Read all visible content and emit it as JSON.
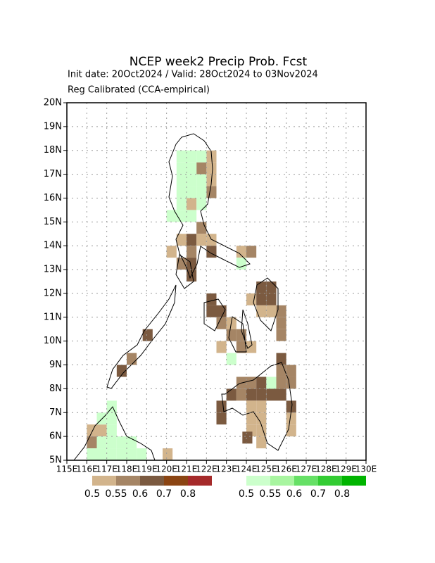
{
  "chart_data": {
    "type": "gridmap",
    "title": "NCEP week2 Precip Prob. Fcst",
    "subtitle": "Init date: 20Oct2024 / Valid: 28Oct2024 to 03Nov2024",
    "subtitle2": "Reg Calibrated (CCA-empirical)",
    "xlim": [
      115,
      130
    ],
    "ylim": [
      5,
      20
    ],
    "xticks": [
      {
        "value": 115,
        "label": "115E"
      },
      {
        "value": 116,
        "label": "116E"
      },
      {
        "value": 117,
        "label": "117E"
      },
      {
        "value": 118,
        "label": "118E"
      },
      {
        "value": 119,
        "label": "119E"
      },
      {
        "value": 120,
        "label": "120E"
      },
      {
        "value": 121,
        "label": "121E"
      },
      {
        "value": 122,
        "label": "122E"
      },
      {
        "value": 123,
        "label": "123E"
      },
      {
        "value": 124,
        "label": "124E"
      },
      {
        "value": 125,
        "label": "125E"
      },
      {
        "value": 126,
        "label": "126E"
      },
      {
        "value": 127,
        "label": "127E"
      },
      {
        "value": 128,
        "label": "128E"
      },
      {
        "value": 129,
        "label": "129E"
      },
      {
        "value": 130,
        "label": "130E"
      }
    ],
    "yticks": [
      {
        "value": 5,
        "label": "5N"
      },
      {
        "value": 6,
        "label": "6N"
      },
      {
        "value": 7,
        "label": "7N"
      },
      {
        "value": 8,
        "label": "8N"
      },
      {
        "value": 9,
        "label": "9N"
      },
      {
        "value": 10,
        "label": "10N"
      },
      {
        "value": 11,
        "label": "11N"
      },
      {
        "value": 12,
        "label": "12N"
      },
      {
        "value": 13,
        "label": "13N"
      },
      {
        "value": 14,
        "label": "14N"
      },
      {
        "value": 15,
        "label": "15N"
      },
      {
        "value": 16,
        "label": "16N"
      },
      {
        "value": 17,
        "label": "17N"
      },
      {
        "value": 18,
        "label": "18N"
      },
      {
        "value": 19,
        "label": "19N"
      },
      {
        "value": 20,
        "label": "20N"
      }
    ],
    "grid": true,
    "cell_size": 0.5,
    "levels": [
      0.5,
      0.55,
      0.6,
      0.7,
      0.8
    ],
    "below_colors": [
      "#d2b48c",
      "#a58565",
      "#7b5a40",
      "#8b4513",
      "#a52a2a"
    ],
    "above_colors": [
      "#ccffcc",
      "#a8f5a0",
      "#66e066",
      "#33cc33",
      "#00b400"
    ],
    "below_cells": [
      [
        122,
        17.5,
        0.52
      ],
      [
        121.5,
        17,
        0.57
      ],
      [
        122,
        17,
        0.52
      ],
      [
        122,
        16.5,
        0.52
      ],
      [
        122,
        16,
        0.57
      ],
      [
        121,
        15.5,
        0.52
      ],
      [
        121.5,
        14.5,
        0.57
      ],
      [
        120.5,
        14,
        0.52
      ],
      [
        121,
        14,
        0.65
      ],
      [
        121.5,
        14,
        0.52
      ],
      [
        122,
        14,
        0.52
      ],
      [
        120,
        13.5,
        0.52
      ],
      [
        121,
        13.5,
        0.57
      ],
      [
        122,
        13.5,
        0.65
      ],
      [
        120.5,
        13,
        0.57
      ],
      [
        121,
        13,
        0.65
      ],
      [
        121,
        12.5,
        0.65
      ],
      [
        123.5,
        13.5,
        0.52
      ],
      [
        124,
        13.5,
        0.57
      ],
      [
        124.5,
        12,
        0.65
      ],
      [
        125,
        12,
        0.65
      ],
      [
        124,
        11.5,
        0.52
      ],
      [
        124.5,
        11.5,
        0.65
      ],
      [
        125,
        11.5,
        0.65
      ],
      [
        124.5,
        11,
        0.52
      ],
      [
        125,
        11,
        0.52
      ],
      [
        125.5,
        11,
        0.57
      ],
      [
        125.5,
        10.5,
        0.57
      ],
      [
        125.5,
        10,
        0.57
      ],
      [
        122,
        11.5,
        0.65
      ],
      [
        122,
        11,
        0.65
      ],
      [
        122.5,
        11,
        0.65
      ],
      [
        122.5,
        10.5,
        0.57
      ],
      [
        123,
        10.5,
        0.52
      ],
      [
        123,
        10,
        0.57
      ],
      [
        123.5,
        10,
        0.57
      ],
      [
        123.5,
        9.5,
        0.57
      ],
      [
        122.5,
        9.5,
        0.52
      ],
      [
        124,
        9.5,
        0.52
      ],
      [
        118.8,
        10,
        0.65
      ],
      [
        118,
        9,
        0.57
      ],
      [
        117.5,
        8.5,
        0.65
      ],
      [
        123,
        7.5,
        0.65
      ],
      [
        123.5,
        7.5,
        0.57
      ],
      [
        124,
        7.5,
        0.65
      ],
      [
        124.5,
        7.5,
        0.65
      ],
      [
        125,
        7.5,
        0.65
      ],
      [
        125.5,
        7.5,
        0.65
      ],
      [
        123.5,
        8,
        0.57
      ],
      [
        124,
        8,
        0.57
      ],
      [
        124.5,
        8,
        0.65
      ],
      [
        125.5,
        8,
        0.57
      ],
      [
        126,
        8,
        0.57
      ],
      [
        125.5,
        8.5,
        0.57
      ],
      [
        126,
        8.5,
        0.57
      ],
      [
        125.5,
        9,
        0.65
      ],
      [
        122.5,
        7,
        0.65
      ],
      [
        122.5,
        6.5,
        0.65
      ],
      [
        124,
        7,
        0.52
      ],
      [
        124.5,
        7,
        0.52
      ],
      [
        124,
        6.5,
        0.52
      ],
      [
        124.5,
        6.5,
        0.52
      ],
      [
        124,
        6,
        0.52
      ],
      [
        124.5,
        6,
        0.52
      ],
      [
        123.8,
        5.7,
        0.65
      ],
      [
        124.5,
        5.5,
        0.52
      ],
      [
        126,
        6.5,
        0.52
      ],
      [
        126,
        6,
        0.52
      ],
      [
        126,
        7,
        0.65
      ],
      [
        116,
        6,
        0.52
      ],
      [
        116.5,
        6,
        0.52
      ],
      [
        116,
        5.5,
        0.57
      ],
      [
        119.8,
        5,
        0.52
      ]
    ],
    "above_cells": [
      [
        120.5,
        17.5,
        0.52
      ],
      [
        121,
        17.5,
        0.52
      ],
      [
        121.5,
        17.5,
        0.52
      ],
      [
        120.5,
        17,
        0.52
      ],
      [
        121,
        17,
        0.52
      ],
      [
        120.5,
        16.5,
        0.52
      ],
      [
        121,
        16.5,
        0.52
      ],
      [
        121.5,
        16.5,
        0.52
      ],
      [
        120.5,
        16,
        0.52
      ],
      [
        121,
        16,
        0.52
      ],
      [
        121.5,
        16,
        0.52
      ],
      [
        120.5,
        15.5,
        0.52
      ],
      [
        121.5,
        15.5,
        0.52
      ],
      [
        120,
        15,
        0.52
      ],
      [
        120.5,
        15,
        0.52
      ],
      [
        121,
        15,
        0.52
      ],
      [
        123.5,
        13,
        0.52
      ],
      [
        123,
        9,
        0.52
      ],
      [
        125,
        8,
        0.52
      ],
      [
        116.5,
        5.5,
        0.52
      ],
      [
        117,
        5.5,
        0.52
      ],
      [
        117.5,
        5.5,
        0.52
      ],
      [
        118,
        5.5,
        0.52
      ],
      [
        116,
        5,
        0.52
      ],
      [
        116.5,
        5,
        0.52
      ],
      [
        117,
        5,
        0.52
      ],
      [
        117.5,
        5,
        0.52
      ],
      [
        118,
        5,
        0.52
      ],
      [
        118.5,
        5,
        0.52
      ],
      [
        117,
        6,
        0.52
      ],
      [
        117,
        6.5,
        0.52
      ],
      [
        117,
        7,
        0.52
      ],
      [
        116.5,
        6.5,
        0.52
      ]
    ]
  }
}
